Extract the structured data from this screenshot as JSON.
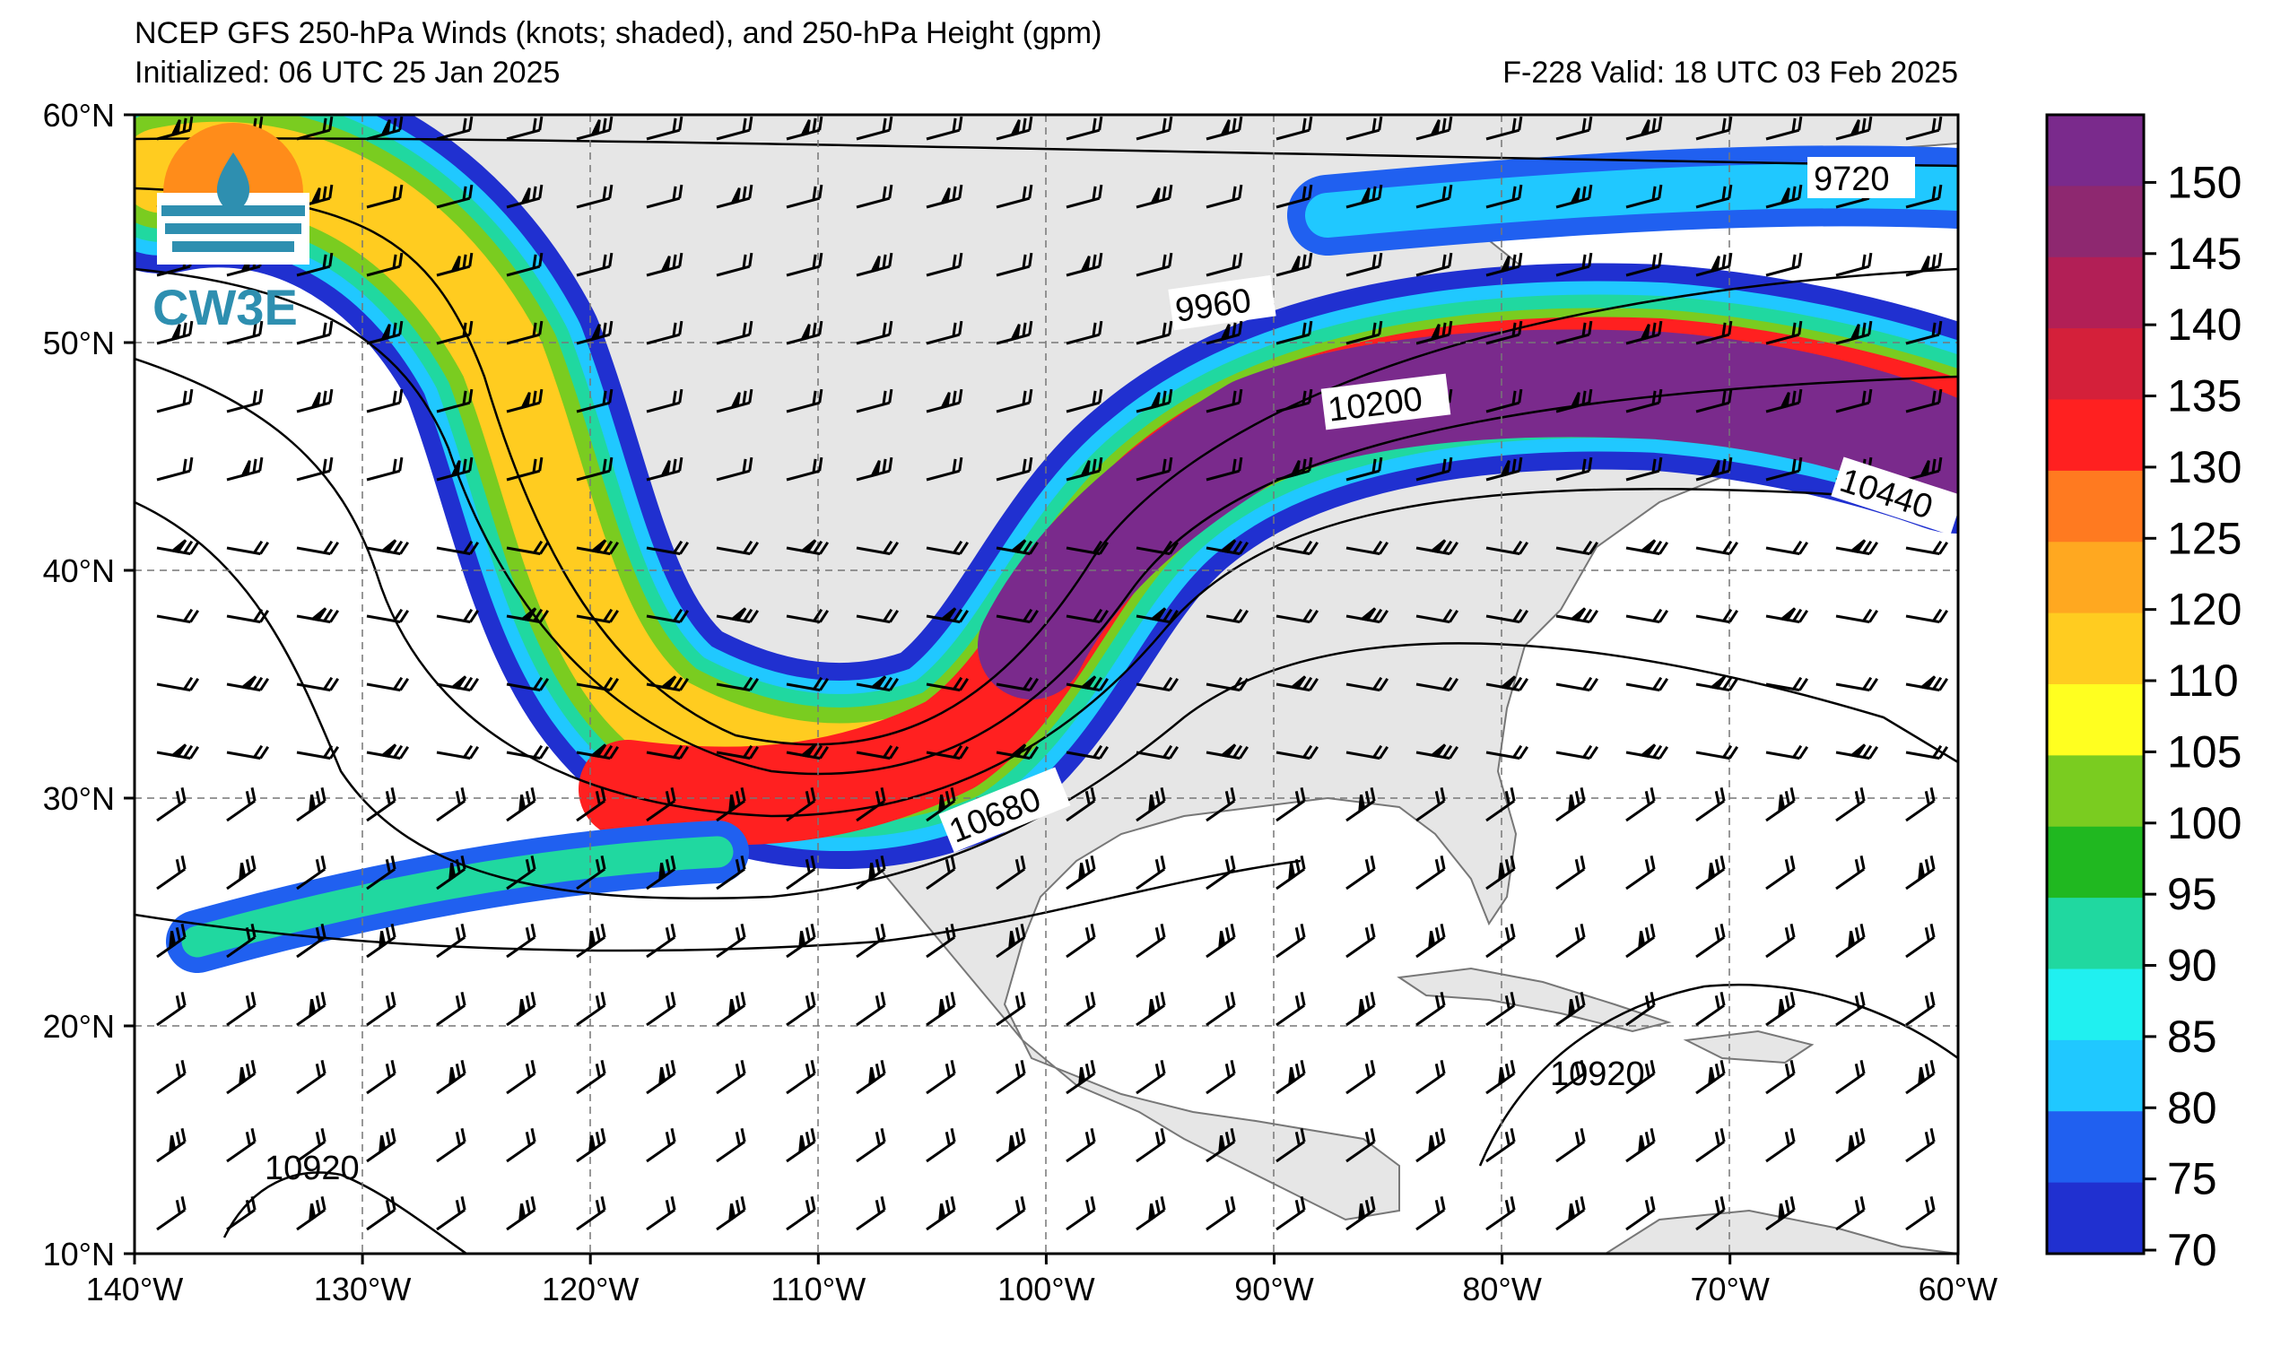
{
  "title": "NCEP GFS 250-hPa Winds (knots; shaded), and 250-hPa Height (gpm)",
  "initialized": "Initialized: 06 UTC 25 Jan 2025",
  "valid": "F-228  Valid: 18 UTC 03 Feb 2025",
  "logo_text": "CW3E",
  "lat_labels": [
    "60°N",
    "50°N",
    "40°N",
    "30°N",
    "20°N",
    "10°N"
  ],
  "lon_labels": [
    "140°W",
    "130°W",
    "120°W",
    "110°W",
    "100°W",
    "90°W",
    "80°W",
    "70°W",
    "60°W"
  ],
  "colorbar": {
    "ticks": [
      "150",
      "145",
      "140",
      "135",
      "130",
      "125",
      "120",
      "110",
      "105",
      "100",
      "95",
      "90",
      "85",
      "80",
      "75",
      "70"
    ],
    "colors": [
      "#7a2a8c",
      "#8e2870",
      "#b21f56",
      "#d4203a",
      "#ff2020",
      "#ff7a20",
      "#ffa820",
      "#ffcc20",
      "#ffff20",
      "#7acc20",
      "#20b820",
      "#20d8a0",
      "#20f0f0",
      "#20c8ff",
      "#2060f0",
      "#2030d0"
    ]
  },
  "contour_labels": [
    "9720",
    "9960",
    "10200",
    "10440",
    "10680",
    "10920",
    "10920"
  ],
  "colors": {
    "land": "#e6e6e6",
    "ocean": "#ffffff",
    "jet_core": "#7a2a8c"
  }
}
